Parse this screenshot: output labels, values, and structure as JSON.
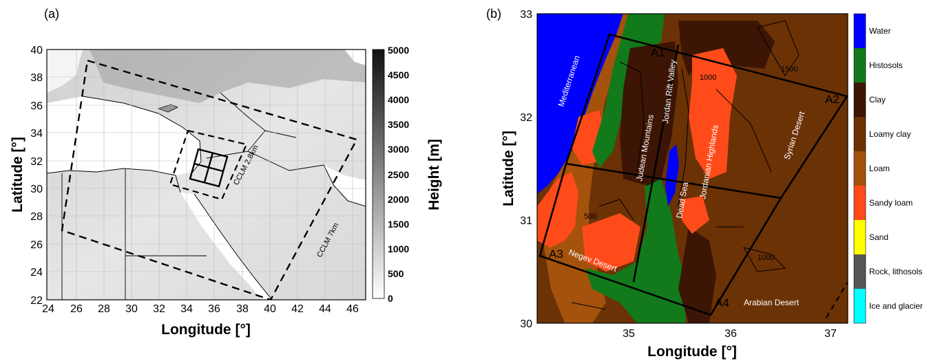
{
  "panel_a": {
    "label": "(a)",
    "xlabel": "Longitude [°]",
    "ylabel": "Latitude [°]",
    "xticks": [
      "24",
      "26",
      "28",
      "30",
      "32",
      "34",
      "36",
      "38",
      "40",
      "42",
      "44",
      "46"
    ],
    "yticks": [
      "22",
      "24",
      "26",
      "28",
      "30",
      "32",
      "34",
      "36",
      "38",
      "40"
    ],
    "xlim": [
      24,
      47
    ],
    "ylim": [
      22,
      40
    ],
    "colorbar": {
      "label": "Height [m]",
      "ticks": [
        "5000",
        "4500",
        "4000",
        "3500",
        "3000",
        "2500",
        "2000",
        "1500",
        "1000",
        "500",
        "0"
      ],
      "range": [
        0,
        5000
      ]
    },
    "domain_labels": [
      "CCLM 7km",
      "CCLM 2.8km"
    ]
  },
  "panel_b": {
    "label": "(b)",
    "xlabel": "Longitude [°]",
    "ylabel": "Latitude [°]",
    "xticks": [
      "35",
      "36",
      "37"
    ],
    "yticks": [
      "30",
      "31",
      "32",
      "33"
    ],
    "xlim": [
      34.2,
      37.25
    ],
    "ylim": [
      30,
      33
    ],
    "legend": [
      {
        "label": "Water",
        "color": "#0000ff"
      },
      {
        "label": "Histosols",
        "color": "#127a1a"
      },
      {
        "label": "Clay",
        "color": "#3d1505"
      },
      {
        "label": "Loamy clay",
        "color": "#6b3206"
      },
      {
        "label": "Loam",
        "color": "#a4520c"
      },
      {
        "label": "Sandy loam",
        "color": "#ff4b1a"
      },
      {
        "label": "Sand",
        "color": "#ffff00"
      },
      {
        "label": "Rock, lithosols",
        "color": "#555555"
      },
      {
        "label": "Ice and glacier",
        "color": "#00ffff"
      }
    ],
    "place_names": {
      "mediterranean": "Mediterranean",
      "judean": "Judean Mountains",
      "jordan_valley": "Jordan Rift Valley",
      "jordanian": "Jordanian Highlands",
      "syrian": "Syrian Desert",
      "dead_sea": "Dead Sea",
      "negev": "Negev Desert",
      "arabian": "Arabian Desert"
    },
    "areas": [
      "A1",
      "A2",
      "A3",
      "A4"
    ],
    "contour_labels": [
      "500",
      "1000",
      "1500"
    ]
  }
}
